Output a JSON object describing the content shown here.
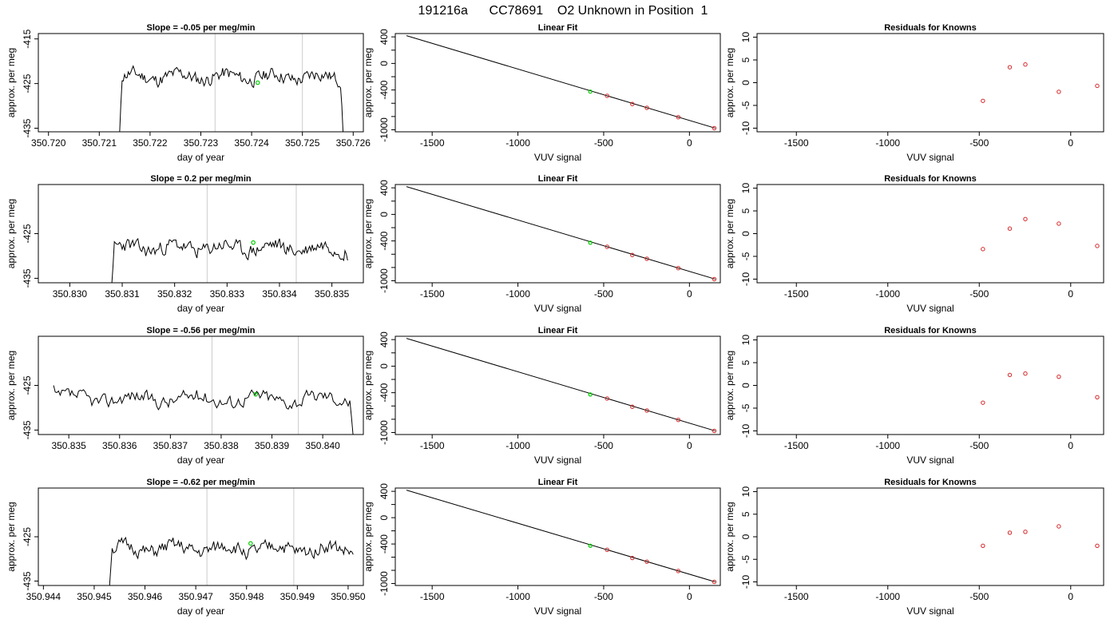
{
  "figure_title": "191216a      CC78691    O2 Unknown in Position  1",
  "chart_data": [
    {
      "type": "line",
      "title": "Slope =  -0.05  per meg/min",
      "xlabel": "day of year",
      "ylabel": "approx. per meg",
      "xlim": [
        350.7198,
        350.7262
      ],
      "ylim": [
        -435.8,
        -413.8
      ],
      "x_ticks": [
        "350.720",
        "350.721",
        "350.722",
        "350.723",
        "350.724",
        "350.725",
        "350.726"
      ],
      "y_ticks": [
        "-415",
        "-425",
        "-435"
      ],
      "ref_lines_x": [
        350.72328,
        350.725
      ],
      "highlight_point": {
        "x": 350.72412,
        "y": -424.8
      },
      "line_range": [
        350.7214,
        350.7258
      ],
      "line_base": -423.5,
      "line_amp": 2.4,
      "seed": 11,
      "start_y": -436.0,
      "end_y": -436.0
    },
    {
      "type": "line",
      "title": "Slope =  0.2  per meg/min",
      "xlabel": "day of year",
      "ylabel": "approx. per meg",
      "xlim": [
        350.8294,
        350.8356
      ],
      "ylim": [
        -436.0,
        -414.0
      ],
      "x_ticks": [
        "350.830",
        "350.831",
        "350.832",
        "350.833",
        "350.834",
        "350.835"
      ],
      "y_ticks": [
        "-425",
        "-435"
      ],
      "ref_lines_x": [
        350.83262,
        350.83432
      ],
      "highlight_point": {
        "x": 350.8335,
        "y": -427.0
      },
      "line_range": [
        350.8308,
        350.8353
      ],
      "line_base": -428.2,
      "line_amp": 2.6,
      "seed": 23,
      "start_y": -436.5,
      "end_y": -431.0
    },
    {
      "type": "line",
      "title": "Slope =  -0.56  per meg/min",
      "xlabel": "day of year",
      "ylabel": "approx. per meg",
      "xlim": [
        350.8344,
        350.8408
      ],
      "ylim": [
        -436.0,
        -414.0
      ],
      "x_ticks": [
        "350.835",
        "350.836",
        "350.837",
        "350.838",
        "350.839",
        "350.840"
      ],
      "y_ticks": [
        "-425",
        "-435"
      ],
      "ref_lines_x": [
        350.83782,
        350.83952
      ],
      "highlight_point": {
        "x": 350.83868,
        "y": -427.0
      },
      "line_range": [
        350.8347,
        350.8406
      ],
      "line_base": -428.0,
      "line_amp": 2.5,
      "seed": 37,
      "start_y": -425.0,
      "end_y": -436.5
    },
    {
      "type": "line",
      "title": "Slope =  -0.62  per meg/min",
      "xlabel": "day of year",
      "ylabel": "approx. per meg",
      "xlim": [
        350.9439,
        350.9503
      ],
      "ylim": [
        -436.0,
        -414.0
      ],
      "x_ticks": [
        "350.944",
        "350.945",
        "350.946",
        "350.947",
        "350.948",
        "350.949",
        "350.950"
      ],
      "y_ticks": [
        "-425",
        "-435"
      ],
      "ref_lines_x": [
        350.94722,
        350.94893
      ],
      "highlight_point": {
        "x": 350.94808,
        "y": -426.5
      },
      "line_range": [
        350.9453,
        350.9501
      ],
      "line_base": -427.8,
      "line_amp": 2.5,
      "seed": 51,
      "start_y": -436.5,
      "end_y": -429.0
    },
    {
      "type": "scatter",
      "title": "Linear Fit",
      "xlabel": "VUV signal",
      "ylabel": "approx. per meg",
      "xlim": [
        -1715,
        180
      ],
      "ylim": [
        -1030,
        450
      ],
      "x_ticks": [
        -1500,
        -1000,
        -500,
        0
      ],
      "y_ticks": [
        400,
        0,
        -400,
        -1000
      ],
      "minor_y_ticks": [
        200,
        -200,
        -600,
        -800
      ],
      "fit_line": {
        "x": [
          -1650,
          150
        ],
        "y": [
          418,
          -975
        ]
      },
      "unknown_point": {
        "x": -578,
        "y": -424.8
      },
      "points": [
        {
          "x": -480,
          "y": -488
        },
        {
          "x": -333,
          "y": -612
        },
        {
          "x": -248,
          "y": -668
        },
        {
          "x": -65,
          "y": -810
        },
        {
          "x": 145,
          "y": -975
        }
      ]
    },
    {
      "type": "scatter",
      "title": "Linear Fit",
      "xlabel": "VUV signal",
      "ylabel": "approx. per meg",
      "xlim": [
        -1715,
        180
      ],
      "ylim": [
        -1030,
        450
      ],
      "x_ticks": [
        -1500,
        -1000,
        -500,
        0
      ],
      "y_ticks": [
        400,
        0,
        -400,
        -1000
      ],
      "minor_y_ticks": [
        200,
        -200,
        -600,
        -800
      ],
      "fit_line": {
        "x": [
          -1650,
          150
        ],
        "y": [
          418,
          -975
        ]
      },
      "unknown_point": {
        "x": -578,
        "y": -427.0
      },
      "points": [
        {
          "x": -480,
          "y": -488
        },
        {
          "x": -333,
          "y": -612
        },
        {
          "x": -248,
          "y": -668
        },
        {
          "x": -65,
          "y": -810
        },
        {
          "x": 145,
          "y": -975
        }
      ]
    },
    {
      "type": "scatter",
      "title": "Linear Fit",
      "xlabel": "VUV signal",
      "ylabel": "approx. per meg",
      "xlim": [
        -1715,
        180
      ],
      "ylim": [
        -1030,
        450
      ],
      "x_ticks": [
        -1500,
        -1000,
        -500,
        0
      ],
      "y_ticks": [
        400,
        0,
        -400,
        -1000
      ],
      "minor_y_ticks": [
        200,
        -200,
        -600,
        -800
      ],
      "fit_line": {
        "x": [
          -1650,
          150
        ],
        "y": [
          418,
          -975
        ]
      },
      "unknown_point": {
        "x": -578,
        "y": -427.0
      },
      "points": [
        {
          "x": -480,
          "y": -488
        },
        {
          "x": -333,
          "y": -612
        },
        {
          "x": -248,
          "y": -668
        },
        {
          "x": -65,
          "y": -810
        },
        {
          "x": 145,
          "y": -975
        }
      ]
    },
    {
      "type": "scatter",
      "title": "Linear Fit",
      "xlabel": "VUV signal",
      "ylabel": "approx. per meg",
      "xlim": [
        -1715,
        180
      ],
      "ylim": [
        -1030,
        450
      ],
      "x_ticks": [
        -1500,
        -1000,
        -500,
        0
      ],
      "y_ticks": [
        400,
        0,
        -400,
        -1000
      ],
      "minor_y_ticks": [
        200,
        -200,
        -600,
        -800
      ],
      "fit_line": {
        "x": [
          -1650,
          150
        ],
        "y": [
          418,
          -975
        ]
      },
      "unknown_point": {
        "x": -578,
        "y": -426.5
      },
      "points": [
        {
          "x": -480,
          "y": -488
        },
        {
          "x": -333,
          "y": -612
        },
        {
          "x": -248,
          "y": -668
        },
        {
          "x": -65,
          "y": -810
        },
        {
          "x": 145,
          "y": -975
        }
      ]
    },
    {
      "type": "scatter",
      "title": "Residuals for Knowns",
      "xlabel": "VUV signal",
      "ylabel": "approx. per meg",
      "xlim": [
        -1715,
        180
      ],
      "ylim": [
        -10.8,
        10.8
      ],
      "x_ticks": [
        -1500,
        -1000,
        -500,
        0
      ],
      "y_ticks": [
        10,
        5,
        0,
        -5,
        -10
      ],
      "points": [
        {
          "x": -480,
          "y": -4.0
        },
        {
          "x": -333,
          "y": 3.4
        },
        {
          "x": -248,
          "y": 4.0
        },
        {
          "x": -65,
          "y": -2.0
        },
        {
          "x": 145,
          "y": -0.7
        }
      ]
    },
    {
      "type": "scatter",
      "title": "Residuals for Knowns",
      "xlabel": "VUV signal",
      "ylabel": "approx. per meg",
      "xlim": [
        -1715,
        180
      ],
      "ylim": [
        -10.8,
        10.8
      ],
      "x_ticks": [
        -1500,
        -1000,
        -500,
        0
      ],
      "y_ticks": [
        10,
        5,
        0,
        -5,
        -10
      ],
      "points": [
        {
          "x": -480,
          "y": -3.4
        },
        {
          "x": -333,
          "y": 1.1
        },
        {
          "x": -248,
          "y": 3.2
        },
        {
          "x": -65,
          "y": 2.2
        },
        {
          "x": 145,
          "y": -2.7
        }
      ]
    },
    {
      "type": "scatter",
      "title": "Residuals for Knowns",
      "xlabel": "VUV signal",
      "ylabel": "approx. per meg",
      "xlim": [
        -1715,
        180
      ],
      "ylim": [
        -10.8,
        10.8
      ],
      "x_ticks": [
        -1500,
        -1000,
        -500,
        0
      ],
      "y_ticks": [
        10,
        5,
        0,
        -5,
        -10
      ],
      "points": [
        {
          "x": -480,
          "y": -3.8
        },
        {
          "x": -333,
          "y": 2.3
        },
        {
          "x": -248,
          "y": 2.6
        },
        {
          "x": -65,
          "y": 1.9
        },
        {
          "x": 145,
          "y": -2.6
        }
      ]
    },
    {
      "type": "scatter",
      "title": "Residuals for Knowns",
      "xlabel": "VUV signal",
      "ylabel": "approx. per meg",
      "xlim": [
        -1715,
        180
      ],
      "ylim": [
        -10.8,
        10.8
      ],
      "x_ticks": [
        -1500,
        -1000,
        -500,
        0
      ],
      "y_ticks": [
        10,
        5,
        0,
        -5,
        -10
      ],
      "points": [
        {
          "x": -480,
          "y": -2.0
        },
        {
          "x": -333,
          "y": 0.9
        },
        {
          "x": -248,
          "y": 1.1
        },
        {
          "x": -65,
          "y": 2.3
        },
        {
          "x": 145,
          "y": -2.0
        }
      ]
    }
  ]
}
